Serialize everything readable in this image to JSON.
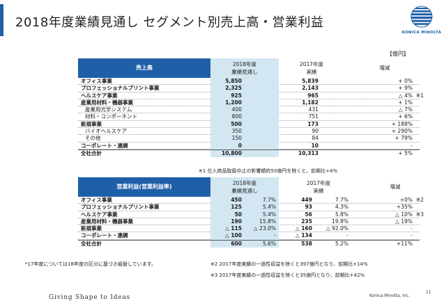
{
  "title": "2018年度業績見通し  セグメント別売上高・営業利益",
  "logo_text": "KONICA MINOLTA",
  "unit": "【億円】",
  "colors": {
    "accent": "#1f5fa8",
    "highlight": "#d2e7f2"
  },
  "sales": {
    "header": {
      "label": "売上高",
      "col1_line1": "2018年度",
      "col1_line2": "業績見通し",
      "col2_line1": "2017年度",
      "col2_line2": "実績",
      "col3": "増減"
    },
    "rows": [
      {
        "label": "オフィス事業",
        "v2018": "5,850",
        "v2017": "5,839",
        "diff": "+ 0%",
        "bold": true,
        "sub": false,
        "mark": ""
      },
      {
        "label": "プロフェッショナルプリント事業",
        "v2018": "2,325",
        "v2017": "2,143",
        "diff": "+ 9%",
        "bold": true,
        "sub": false,
        "mark": ""
      },
      {
        "label": "ヘルスケア事業",
        "v2018": "925",
        "v2017": "965",
        "diff": "△ 4%",
        "bold": true,
        "sub": false,
        "mark": "※1"
      },
      {
        "label": "産業用材料・機器事業",
        "v2018": "1,200",
        "v2017": "1,182",
        "diff": "+ 1%",
        "bold": true,
        "sub": false,
        "mark": ""
      },
      {
        "label": "産業用光学システム",
        "v2018": "400",
        "v2017": "431",
        "diff": "△ 7%",
        "bold": false,
        "sub": true,
        "mark": ""
      },
      {
        "label": "材料・コンポーネント",
        "v2018": "800",
        "v2017": "751",
        "diff": "+ 6%",
        "bold": false,
        "sub": true,
        "mark": ""
      },
      {
        "label": "新規事業",
        "v2018": "500",
        "v2017": "173",
        "diff": "+ 188%",
        "bold": true,
        "sub": false,
        "mark": ""
      },
      {
        "label": "バイオヘルスケア",
        "v2018": "350",
        "v2017": "90",
        "diff": "+ 290%",
        "bold": false,
        "sub": true,
        "mark": ""
      },
      {
        "label": "その他",
        "v2018": "150",
        "v2017": "84",
        "diff": "+ 79%",
        "bold": false,
        "sub": true,
        "mark": ""
      },
      {
        "label": "コーポレート・連調",
        "v2018": "0",
        "v2017": "10",
        "diff": "-",
        "bold": true,
        "sub": false,
        "mark": ""
      }
    ],
    "total": {
      "label": "全社合計",
      "v2018": "10,800",
      "v2017": "10,313",
      "diff": "+ 5%"
    },
    "note": "※1 仕入商品取扱中止の影響額約50億円を除くと、前期比+4%"
  },
  "op": {
    "header": {
      "label": "営業利益(営業利益率)",
      "col1_line1": "2018年度",
      "col1_line2": "業績見通し",
      "col2_line1": "2017年度",
      "col2_line2": "実績",
      "col3": "増減"
    },
    "rows": [
      {
        "label": "オフィス事業",
        "v2018": "450",
        "m2018": "7.7%",
        "v2017": "449",
        "m2017": "7.7%",
        "diff": "+0%",
        "mark": "※2"
      },
      {
        "label": "プロフェッショナルプリント事業",
        "v2018": "125",
        "m2018": "5.4%",
        "v2017": "93",
        "m2017": "4.3%",
        "diff": "+35%",
        "mark": ""
      },
      {
        "label": "ヘルスケア事業",
        "v2018": "50",
        "m2018": "5.4%",
        "v2017": "56",
        "m2017": "5.8%",
        "diff": "△ 10%",
        "mark": "※3"
      },
      {
        "label": "産業用材料・機器事業",
        "v2018": "190",
        "m2018": "15.8%",
        "v2017": "235",
        "m2017": "19.8%",
        "diff": "△ 19%",
        "mark": ""
      },
      {
        "label": "新規事業",
        "v2018": "△ 115",
        "m2018": "△ 23.0%",
        "v2017": "△ 160",
        "m2017": "△ 92.0%",
        "diff": "-",
        "mark": ""
      },
      {
        "label": "コーポレート・連調",
        "v2018": "△ 100",
        "m2018": "-",
        "v2017": "△ 134",
        "m2017": "-",
        "diff": "-",
        "mark": ""
      }
    ],
    "total": {
      "label": "全社合計",
      "v2018": "600",
      "m2018": "5.6%",
      "v2017": "538",
      "m2017": "5.2%",
      "diff": "+11%"
    }
  },
  "notes": {
    "left": "*17年度については18年度の区分に基づき組替しています。",
    "n2": "※2 2017年度実績の一過性収益を除くと397億円となり、前期比+14%",
    "n3": "※3 2017年度実績の一過性収益を除くと35億円となり、前期比+42%"
  },
  "footer": {
    "slogan": "Giving Shape to Ideas",
    "company": "Konica Minolta, Inc.",
    "page": "11"
  }
}
